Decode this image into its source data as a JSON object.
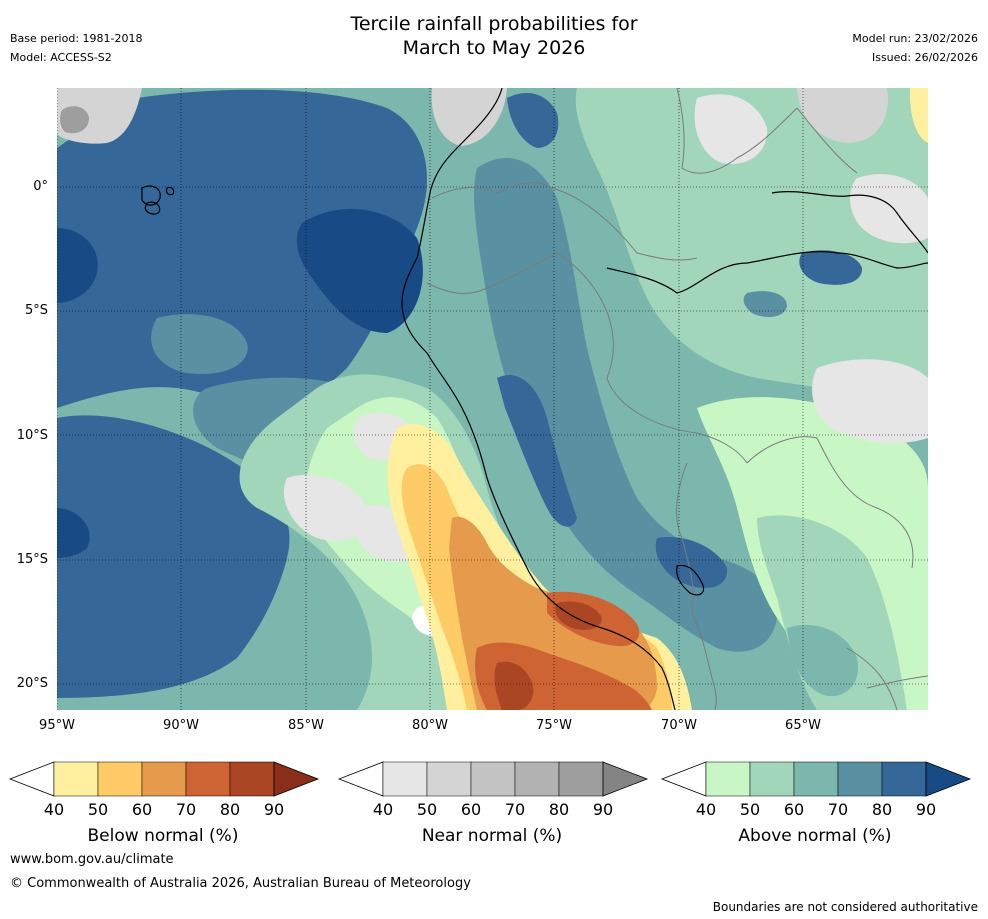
{
  "title": {
    "line1": "Tercile rainfall probabilities for",
    "line2": "March to May 2026"
  },
  "meta": {
    "base_period": "Base period: 1981-2018",
    "model": "Model: ACCESS-S2",
    "model_run": "Model run: 23/02/2026",
    "issued": "Issued: 26/02/2026"
  },
  "axes": {
    "lat_labels": [
      "0°",
      "5°S",
      "10°S",
      "15°S",
      "20°S"
    ],
    "lon_labels": [
      "95°W",
      "90°W",
      "85°W",
      "80°W",
      "75°W",
      "70°W",
      "65°W"
    ]
  },
  "colorbars": [
    {
      "label": "Below normal (%)",
      "ticks": [
        "40",
        "50",
        "60",
        "70",
        "80",
        "90"
      ],
      "colors": [
        "#ffffff",
        "#fff0a0",
        "#ffcb66",
        "#e69a4b",
        "#ce6434",
        "#ab4624",
        "#8a2d19"
      ]
    },
    {
      "label": "Near normal (%)",
      "ticks": [
        "40",
        "50",
        "60",
        "70",
        "80",
        "90"
      ],
      "colors": [
        "#ffffff",
        "#e6e6e6",
        "#d4d4d4",
        "#c4c4c4",
        "#b2b2b2",
        "#9e9e9e",
        "#848484"
      ]
    },
    {
      "label": "Above normal (%)",
      "ticks": [
        "40",
        "50",
        "60",
        "70",
        "80",
        "90"
      ],
      "colors": [
        "#ffffff",
        "#c8f7c5",
        "#a2d6bb",
        "#7cb7ae",
        "#5991a2",
        "#366799",
        "#184b86"
      ]
    }
  ],
  "footer": {
    "website": "www.bom.gov.au/climate",
    "copyright": "© Commonwealth of Australia 2026, Australian Bureau of Meteorology",
    "disclaimer": "Boundaries are not considered authoritative"
  }
}
